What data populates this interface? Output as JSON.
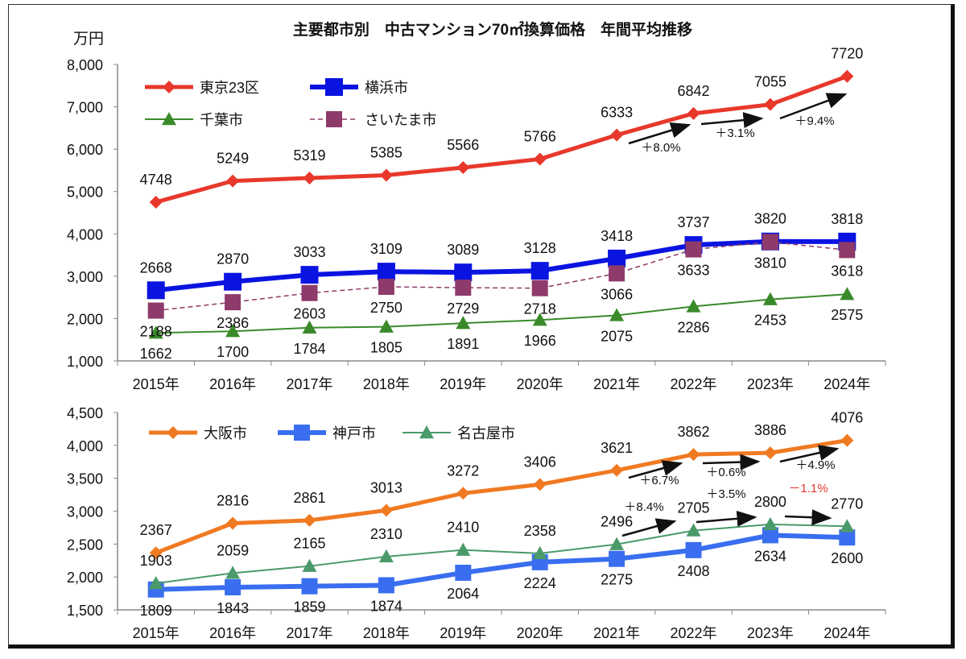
{
  "chart_data": [
    {
      "type": "line",
      "title": "主要都市別　中古マンション70㎡換算価格　年間平均推移",
      "ylabel": "万円",
      "xlabel": "",
      "ylim": [
        1000,
        8000
      ],
      "yticks": [
        "1,000",
        "2,000",
        "3,000",
        "4,000",
        "5,000",
        "6,000",
        "7,000",
        "8,000"
      ],
      "categories": [
        "2015年",
        "2016年",
        "2017年",
        "2018年",
        "2019年",
        "2020年",
        "2021年",
        "2022年",
        "2023年",
        "2024年"
      ],
      "legend": "top-left",
      "series": [
        {
          "name": "東京23区",
          "color": "#e8382c",
          "marker": "diamond",
          "style": "solid",
          "label_pos": "above",
          "values": [
            4748,
            5249,
            5319,
            5385,
            5566,
            5766,
            6333,
            6842,
            7055,
            7720
          ]
        },
        {
          "name": "横浜市",
          "color": "#0a14e0",
          "marker": "square",
          "style": "solid",
          "label_pos": "above",
          "values": [
            2668,
            2870,
            3033,
            3109,
            3089,
            3128,
            3418,
            3737,
            3820,
            3818
          ]
        },
        {
          "name": "千葉市",
          "color": "#3a8a2a",
          "marker": "triangle",
          "style": "solid",
          "label_pos": "below",
          "values": [
            1662,
            1700,
            1784,
            1805,
            1891,
            1966,
            2075,
            2286,
            2453,
            2575
          ]
        },
        {
          "name": "さいたま市",
          "color": "#8e3a6a",
          "marker": "square",
          "style": "dashed",
          "label_pos": "below",
          "values": [
            2188,
            2386,
            2603,
            2750,
            2729,
            2718,
            3066,
            3633,
            3810,
            3618
          ]
        }
      ],
      "annotations": [
        {
          "from": 6,
          "to": 7,
          "text": "＋8.0%",
          "color": "#111111"
        },
        {
          "from": 7,
          "to": 8,
          "text": "＋3.1%",
          "color": "#111111"
        },
        {
          "from": 8,
          "to": 9,
          "text": "＋9.4%",
          "color": "#111111"
        }
      ]
    },
    {
      "type": "line",
      "ylim": [
        1500,
        4500
      ],
      "yticks": [
        "1,500",
        "2,000",
        "2,500",
        "3,000",
        "3,500",
        "4,000",
        "4,500"
      ],
      "categories": [
        "2015年",
        "2016年",
        "2017年",
        "2018年",
        "2019年",
        "2020年",
        "2021年",
        "2022年",
        "2023年",
        "2024年"
      ],
      "legend": "top-left",
      "series": [
        {
          "name": "大阪市",
          "color": "#f07a22",
          "marker": "diamond",
          "style": "solid",
          "label_pos": "above",
          "values": [
            2367,
            2816,
            2861,
            3013,
            3272,
            3406,
            3621,
            3862,
            3886,
            4076
          ]
        },
        {
          "name": "神戸市",
          "color": "#3a6ef0",
          "marker": "square",
          "style": "solid",
          "label_pos": "below",
          "values": [
            1809,
            1843,
            1859,
            1874,
            2064,
            2224,
            2275,
            2408,
            2634,
            2600
          ]
        },
        {
          "name": "名古屋市",
          "color": "#4a9a6a",
          "marker": "triangle",
          "style": "solid",
          "label_pos": "above",
          "values": [
            1903,
            2059,
            2165,
            2310,
            2410,
            2358,
            2496,
            2705,
            2800,
            2770
          ]
        }
      ],
      "annotations": [
        {
          "from": 6,
          "to": 7,
          "text": "＋6.7%",
          "color": "#111111"
        },
        {
          "from": 7,
          "to": 8,
          "text": "＋0.6%",
          "color": "#111111"
        },
        {
          "from": 8,
          "to": 9,
          "text": "＋4.9%",
          "color": "#111111"
        },
        {
          "from": 6,
          "to": 7,
          "text": "＋8.4%",
          "color": "#111111"
        },
        {
          "from": 7,
          "to": 8,
          "text": "＋3.5%",
          "color": "#111111"
        },
        {
          "from": 8,
          "to": 9,
          "text": "－1.1%",
          "color": "#e8382c"
        }
      ]
    }
  ]
}
